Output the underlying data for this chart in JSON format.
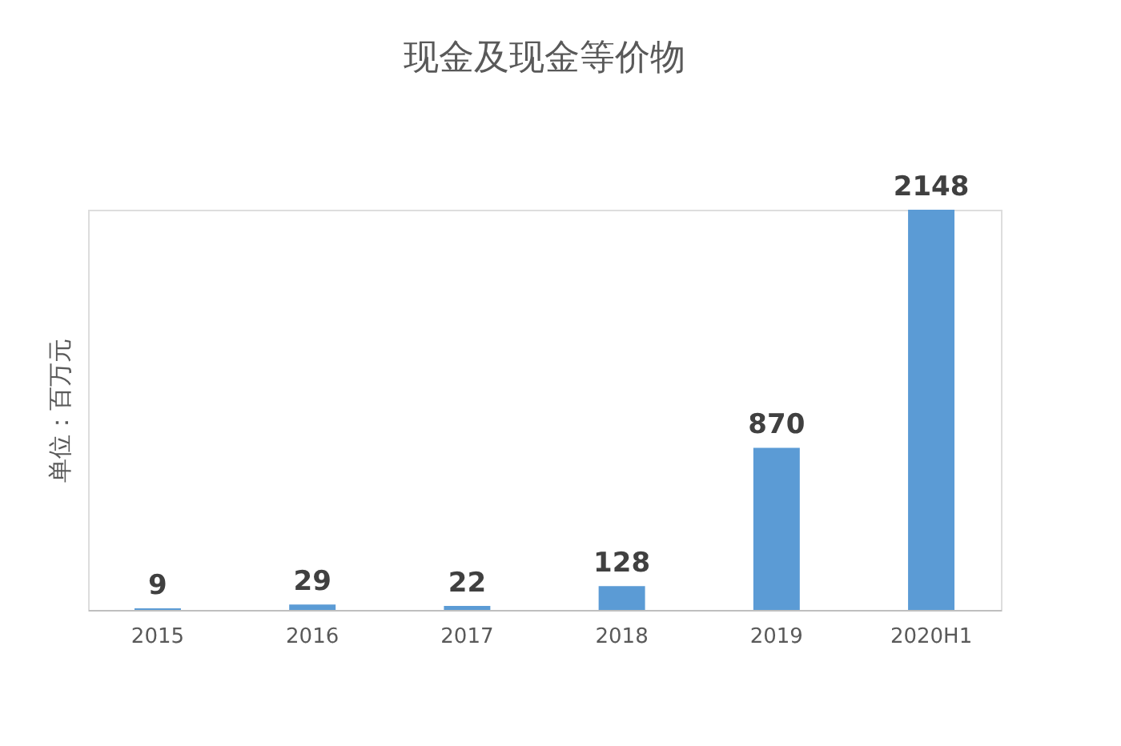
{
  "chart_data": {
    "type": "bar",
    "title": "现金及现金等价物",
    "ylabel": "单位：百万元",
    "categories": [
      "2015",
      "2016",
      "2017",
      "2018",
      "2019",
      "2020H1"
    ],
    "values": [
      9,
      29,
      22,
      128,
      870,
      2148
    ],
    "color": "#5b9bd5",
    "data_labels": true,
    "grid": false
  }
}
